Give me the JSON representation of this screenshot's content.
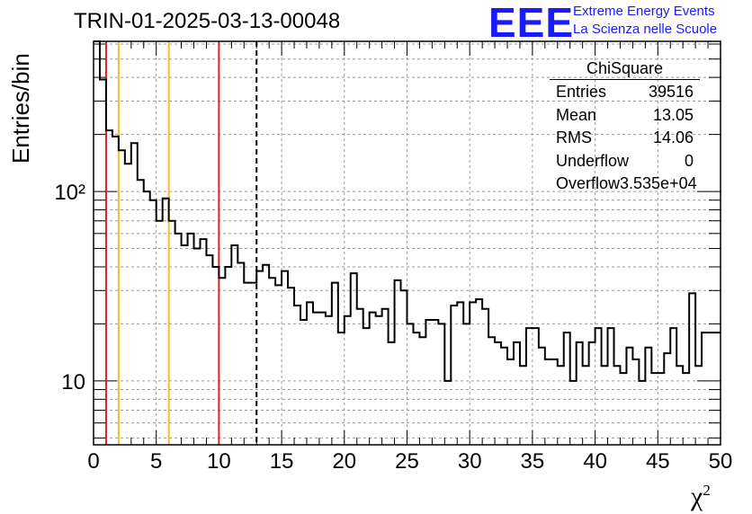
{
  "header": {
    "title": "TRIN-01-2025-03-13-00048",
    "logo_text": "EEE",
    "logo_line1": "Extreme Energy Events",
    "logo_line2": "La Scienza nelle Scuole"
  },
  "stats": {
    "title": "ChiSquare",
    "rows": [
      {
        "label": "Entries",
        "value": "39516"
      },
      {
        "label": "Mean",
        "value": "13.05"
      },
      {
        "label": "RMS",
        "value": "14.06"
      },
      {
        "label": "Underflow",
        "value": "0"
      },
      {
        "label": "Overflow",
        "value": "3.535e+04"
      }
    ]
  },
  "chart_data": {
    "type": "histogram",
    "title": "TRIN-01-2025-03-13-00048",
    "xlabel": "χ²",
    "ylabel": "Entries/bin",
    "xlim": [
      0,
      50
    ],
    "ylim": [
      4.6,
      620
    ],
    "yscale": "log",
    "grid": true,
    "bin_width": 0.5,
    "x_ticks": [
      "0",
      "5",
      "10",
      "15",
      "20",
      "25",
      "30",
      "35",
      "40",
      "45",
      "50"
    ],
    "y_ticks": [
      {
        "value": 10,
        "label": "10"
      },
      {
        "value": 100,
        "label": "10²"
      }
    ],
    "values": [
      620,
      390,
      210,
      195,
      165,
      140,
      180,
      115,
      100,
      90,
      70,
      92,
      70,
      60,
      52,
      60,
      50,
      56,
      46,
      40,
      35,
      40,
      52,
      42,
      33,
      33,
      38,
      41,
      35,
      32,
      38,
      31,
      25,
      21,
      26,
      23,
      23,
      22,
      33,
      18,
      22,
      37,
      24,
      19,
      23,
      22,
      24,
      16,
      34,
      30,
      20,
      18,
      17,
      21,
      21,
      20,
      10,
      25,
      26,
      20,
      26,
      27,
      24,
      17,
      16,
      15,
      13,
      16,
      12,
      19,
      19,
      15,
      13,
      13,
      12,
      18,
      10,
      16,
      12,
      16,
      19,
      12,
      19,
      12,
      11,
      15,
      13,
      10,
      15,
      11,
      11,
      14,
      19,
      12,
      11,
      29,
      12,
      18,
      18,
      18
    ],
    "vlines": [
      {
        "x": 1,
        "color": "#dd2222",
        "style": "solid"
      },
      {
        "x": 2,
        "color": "#f0c020",
        "style": "solid"
      },
      {
        "x": 6,
        "color": "#f0c020",
        "style": "solid"
      },
      {
        "x": 10,
        "color": "#dd2222",
        "style": "solid"
      },
      {
        "x": 13,
        "color": "#000000",
        "style": "dashed"
      }
    ]
  }
}
